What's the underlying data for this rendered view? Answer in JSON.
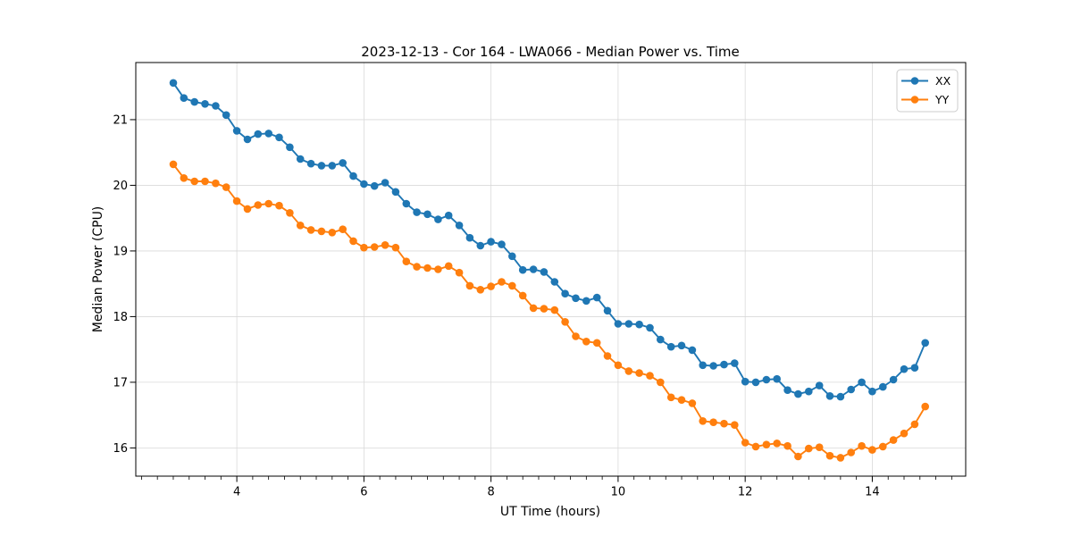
{
  "chart_data": {
    "type": "line",
    "title": "2023-12-13 - Cor 164 - LWA066 - Median Power vs. Time",
    "xlabel": "UT Time (hours)",
    "ylabel": "Median Power (CPU)",
    "xlim": [
      2.41,
      15.47
    ],
    "ylim": [
      15.57,
      21.87
    ],
    "x_major_ticks": [
      4,
      6,
      8,
      10,
      12,
      14
    ],
    "x_tick_labels": [
      "4",
      "6",
      "8",
      "10",
      "12",
      "14"
    ],
    "x_minor_tick_step": 0.25,
    "x_minor_tick_range": [
      2.5,
      15.25
    ],
    "y_major_ticks": [
      16,
      17,
      18,
      19,
      20,
      21
    ],
    "y_tick_labels": [
      "16",
      "17",
      "18",
      "19",
      "20",
      "21"
    ],
    "grid": true,
    "grid_color": "#d9d9d9",
    "spine_color": "#000000",
    "background_color": "#ffffff",
    "legend_position": "upper right",
    "x": [
      3.0,
      3.167,
      3.333,
      3.5,
      3.667,
      3.833,
      4.0,
      4.167,
      4.333,
      4.5,
      4.667,
      4.833,
      5.0,
      5.167,
      5.333,
      5.5,
      5.667,
      5.833,
      6.0,
      6.167,
      6.333,
      6.5,
      6.667,
      6.833,
      7.0,
      7.167,
      7.333,
      7.5,
      7.667,
      7.833,
      8.0,
      8.167,
      8.333,
      8.5,
      8.667,
      8.833,
      9.0,
      9.167,
      9.333,
      9.5,
      9.667,
      9.833,
      10.0,
      10.167,
      10.333,
      10.5,
      10.667,
      10.833,
      11.0,
      11.167,
      11.333,
      11.5,
      11.667,
      11.833,
      12.0,
      12.167,
      12.333,
      12.5,
      12.667,
      12.833,
      13.0,
      13.167,
      13.333,
      13.5,
      13.667,
      13.833,
      14.0,
      14.167,
      14.333,
      14.5,
      14.667,
      14.833
    ],
    "series": [
      {
        "name": "XX",
        "color": "#1f77b4",
        "values": [
          21.56,
          21.33,
          21.27,
          21.24,
          21.21,
          21.07,
          20.83,
          20.7,
          20.78,
          20.79,
          20.73,
          20.58,
          20.4,
          20.33,
          20.3,
          20.3,
          20.34,
          20.14,
          20.02,
          19.99,
          20.04,
          19.9,
          19.72,
          19.59,
          19.56,
          19.48,
          19.54,
          19.39,
          19.2,
          19.08,
          19.14,
          19.1,
          18.92,
          18.71,
          18.72,
          18.68,
          18.53,
          18.35,
          18.28,
          18.24,
          18.29,
          18.09,
          17.89,
          17.89,
          17.88,
          17.83,
          17.65,
          17.54,
          17.56,
          17.49,
          17.26,
          17.25,
          17.27,
          17.29,
          17.01,
          17.0,
          17.04,
          17.05,
          16.88,
          16.82,
          16.86,
          16.95,
          16.79,
          16.78,
          16.89,
          17.0,
          16.86,
          16.93,
          17.04,
          17.2,
          17.22,
          17.6
        ]
      },
      {
        "name": "YY",
        "color": "#ff7f0e",
        "values": [
          20.32,
          20.11,
          20.06,
          20.06,
          20.03,
          19.97,
          19.76,
          19.64,
          19.7,
          19.72,
          19.69,
          19.58,
          19.39,
          19.32,
          19.3,
          19.28,
          19.33,
          19.15,
          19.05,
          19.06,
          19.09,
          19.05,
          18.84,
          18.76,
          18.74,
          18.72,
          18.77,
          18.67,
          18.47,
          18.41,
          18.46,
          18.53,
          18.47,
          18.32,
          18.13,
          18.12,
          18.1,
          17.92,
          17.7,
          17.62,
          17.6,
          17.4,
          17.26,
          17.17,
          17.14,
          17.1,
          17.0,
          16.77,
          16.73,
          16.68,
          16.41,
          16.39,
          16.37,
          16.35,
          16.08,
          16.02,
          16.05,
          16.07,
          16.03,
          15.87,
          15.99,
          16.01,
          15.88,
          15.85,
          15.93,
          16.03,
          15.97,
          16.02,
          16.12,
          16.22,
          16.36,
          16.63
        ]
      }
    ]
  }
}
